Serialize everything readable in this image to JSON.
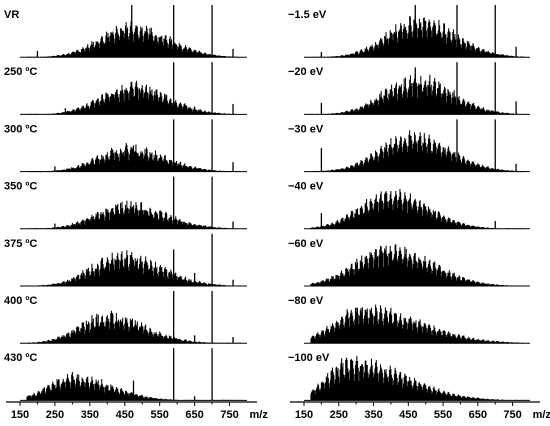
{
  "chart_data": [
    {
      "type": "mass-spectrum-stack",
      "title": "",
      "xlabel": "m/z",
      "xlim": [
        150,
        800
      ],
      "x_ticks": [
        150,
        250,
        350,
        450,
        550,
        650,
        750
      ],
      "x_tick_labels": [
        "150",
        "250",
        "350",
        "450",
        "550",
        "650",
        "750"
      ],
      "units_label": "m/z",
      "panels": [
        {
          "label": "VR",
          "center": 470,
          "width": 95,
          "height": 0.62,
          "skew": 0.1,
          "noise": 0.16,
          "spikes": [
            [
              470,
              1.0
            ],
            [
              590,
              1.0
            ],
            [
              700,
              1.0
            ],
            [
              200,
              0.12
            ],
            [
              760,
              0.16
            ],
            [
              645,
              0.1
            ]
          ]
        },
        {
          "label": "250 ºC",
          "center": 470,
          "width": 92,
          "height": 0.58,
          "skew": 0.1,
          "noise": 0.2,
          "spikes": [
            [
              590,
              1.0
            ],
            [
              700,
              1.0
            ],
            [
              470,
              0.55
            ],
            [
              760,
              0.2
            ],
            [
              650,
              0.15
            ],
            [
              280,
              0.12
            ]
          ]
        },
        {
          "label": "300 ºC",
          "center": 460,
          "width": 92,
          "height": 0.48,
          "skew": 0.12,
          "noise": 0.2,
          "spikes": [
            [
              590,
              1.0
            ],
            [
              700,
              1.0
            ],
            [
              475,
              0.5
            ],
            [
              760,
              0.18
            ],
            [
              250,
              0.1
            ]
          ]
        },
        {
          "label": "350 ºC",
          "center": 455,
          "width": 95,
          "height": 0.48,
          "skew": 0.15,
          "noise": 0.2,
          "spikes": [
            [
              590,
              1.0
            ],
            [
              700,
              1.0
            ],
            [
              475,
              0.45
            ],
            [
              760,
              0.14
            ],
            [
              250,
              0.1
            ]
          ]
        },
        {
          "label": "375 ºC",
          "center": 440,
          "width": 95,
          "height": 0.6,
          "skew": 0.18,
          "noise": 0.22,
          "spikes": [
            [
              700,
              1.0
            ],
            [
              590,
              0.7
            ],
            [
              475,
              0.5
            ],
            [
              650,
              0.25
            ],
            [
              760,
              0.12
            ]
          ]
        },
        {
          "label": "400 ºC",
          "center": 400,
          "width": 90,
          "height": 0.55,
          "skew": 0.2,
          "noise": 0.22,
          "spikes": [
            [
              590,
              1.0
            ],
            [
              700,
              1.0
            ],
            [
              475,
              0.3
            ],
            [
              650,
              0.15
            ],
            [
              760,
              0.12
            ]
          ]
        },
        {
          "label": "430 ºC",
          "center": 300,
          "width": 85,
          "height": 0.48,
          "skew": 0.3,
          "noise": 0.18,
          "spikes": [
            [
              590,
              1.0
            ],
            [
              700,
              1.0
            ],
            [
              475,
              0.38
            ],
            [
              650,
              0.08
            ]
          ]
        },
        {
          "label": "−1.5 eV",
          "center": 480,
          "width": 95,
          "height": 0.75,
          "skew": 0.1,
          "noise": 0.16,
          "spikes": [
            [
              470,
              1.0
            ],
            [
              590,
              1.0
            ],
            [
              700,
              1.0
            ],
            [
              760,
              0.2
            ],
            [
              200,
              0.1
            ]
          ]
        },
        {
          "label": "−20 eV",
          "center": 470,
          "width": 95,
          "height": 0.72,
          "skew": 0.1,
          "noise": 0.2,
          "spikes": [
            [
              590,
              1.0
            ],
            [
              700,
              1.0
            ],
            [
              470,
              0.9
            ],
            [
              760,
              0.25
            ],
            [
              200,
              0.22
            ],
            [
              650,
              0.15
            ]
          ]
        },
        {
          "label": "−30 eV",
          "center": 460,
          "width": 98,
          "height": 0.72,
          "skew": 0.1,
          "noise": 0.14,
          "spikes": [
            [
              590,
              1.0
            ],
            [
              700,
              1.0
            ],
            [
              200,
              0.45
            ],
            [
              760,
              0.15
            ]
          ]
        },
        {
          "label": "−40 eV",
          "center": 400,
          "width": 95,
          "height": 0.72,
          "skew": 0.12,
          "noise": 0.14,
          "spikes": [
            [
              200,
              0.3
            ],
            [
              700,
              0.15
            ]
          ]
        },
        {
          "label": "−60 eV",
          "center": 395,
          "width": 105,
          "height": 0.78,
          "skew": 0.15,
          "noise": 0.14,
          "spikes": []
        },
        {
          "label": "−80 eV",
          "center": 320,
          "width": 110,
          "height": 0.7,
          "skew": 0.45,
          "noise": 0.14,
          "spikes": []
        },
        {
          "label": "−100 eV",
          "center": 285,
          "width": 100,
          "height": 0.8,
          "skew": 0.55,
          "noise": 0.14,
          "spikes": []
        }
      ]
    }
  ]
}
